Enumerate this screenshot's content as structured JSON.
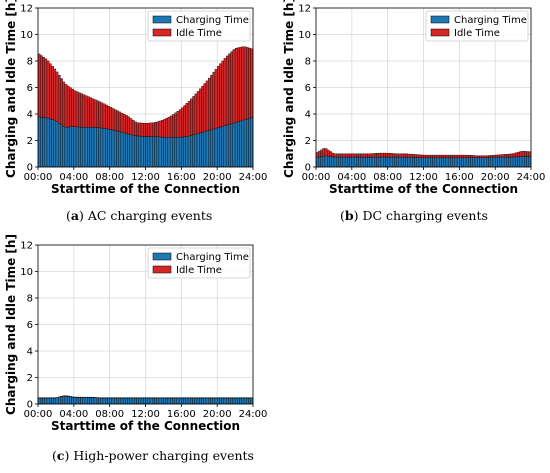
{
  "colors": {
    "charging": "#1f77b4",
    "idle": "#d62728",
    "edge": "#000000",
    "grid": "#d9d9d9"
  },
  "chart_data": [
    {
      "panel": "a",
      "type": "bar",
      "stacked": true,
      "xlabel": "Starttime of the Connection",
      "ylabel": "Charging and Idle Time [h]",
      "ylim": [
        0,
        12
      ],
      "yticks": [
        "0",
        "2",
        "4",
        "6",
        "8",
        "10",
        "12"
      ],
      "xticks": [
        "00:00",
        "04:00",
        "08:00",
        "12:00",
        "16:00",
        "20:00",
        "24:00"
      ],
      "grid": true,
      "legend": "top-right",
      "x_anchor_hours": [
        0,
        1,
        2,
        3,
        4,
        5,
        6,
        7,
        8,
        9,
        10,
        11,
        12,
        13,
        14,
        15,
        16,
        17,
        18,
        19,
        20,
        21,
        22,
        23,
        24
      ],
      "series": [
        {
          "name": "Charging Time",
          "values": [
            3.8,
            3.7,
            3.5,
            3.0,
            3.05,
            3.0,
            3.0,
            2.95,
            2.85,
            2.7,
            2.5,
            2.35,
            2.3,
            2.3,
            2.25,
            2.25,
            2.25,
            2.35,
            2.55,
            2.75,
            2.95,
            3.15,
            3.35,
            3.55,
            3.75
          ]
        },
        {
          "name": "Idle Time",
          "values": [
            4.8,
            4.4,
            3.8,
            3.3,
            2.75,
            2.5,
            2.2,
            1.95,
            1.7,
            1.5,
            1.35,
            1.0,
            1.0,
            1.05,
            1.3,
            1.65,
            2.15,
            2.7,
            3.25,
            3.85,
            4.55,
            5.15,
            5.6,
            5.55,
            5.15
          ]
        }
      ]
    },
    {
      "panel": "b",
      "type": "bar",
      "stacked": true,
      "xlabel": "Starttime of the Connection",
      "ylabel": "Charging and Idle Time [h]",
      "ylim": [
        0,
        12
      ],
      "yticks": [
        "0",
        "2",
        "4",
        "6",
        "8",
        "10",
        "12"
      ],
      "xticks": [
        "00:00",
        "04:00",
        "08:00",
        "12:00",
        "16:00",
        "20:00",
        "24:00"
      ],
      "grid": true,
      "legend": "top-right",
      "x_anchor_hours": [
        0,
        1,
        2,
        3,
        4,
        5,
        6,
        7,
        8,
        9,
        10,
        11,
        12,
        13,
        14,
        15,
        16,
        17,
        18,
        19,
        20,
        21,
        22,
        23,
        24
      ],
      "series": [
        {
          "name": "Charging Time",
          "values": [
            0.7,
            0.85,
            0.75,
            0.75,
            0.75,
            0.75,
            0.75,
            0.75,
            0.75,
            0.75,
            0.75,
            0.7,
            0.7,
            0.7,
            0.7,
            0.7,
            0.7,
            0.7,
            0.7,
            0.7,
            0.75,
            0.75,
            0.75,
            0.8,
            0.8
          ]
        },
        {
          "name": "Idle Time",
          "values": [
            0.35,
            0.6,
            0.25,
            0.25,
            0.25,
            0.25,
            0.25,
            0.3,
            0.3,
            0.25,
            0.25,
            0.25,
            0.2,
            0.2,
            0.2,
            0.2,
            0.2,
            0.2,
            0.15,
            0.15,
            0.15,
            0.2,
            0.25,
            0.4,
            0.35
          ]
        }
      ]
    },
    {
      "panel": "c",
      "type": "bar",
      "stacked": true,
      "xlabel": "Starttime of the Connection",
      "ylabel": "Charging and Idle Time [h]",
      "ylim": [
        0,
        12
      ],
      "yticks": [
        "0",
        "2",
        "4",
        "6",
        "8",
        "10",
        "12"
      ],
      "xticks": [
        "00:00",
        "04:00",
        "08:00",
        "12:00",
        "16:00",
        "20:00",
        "24:00"
      ],
      "grid": true,
      "legend": "top-right",
      "x_anchor_hours": [
        0,
        1,
        2,
        3,
        4,
        5,
        6,
        7,
        8,
        9,
        10,
        11,
        12,
        13,
        14,
        15,
        16,
        17,
        18,
        19,
        20,
        21,
        22,
        23,
        24
      ],
      "series": [
        {
          "name": "Charging Time",
          "values": [
            0.45,
            0.45,
            0.45,
            0.6,
            0.5,
            0.5,
            0.5,
            0.45,
            0.45,
            0.45,
            0.45,
            0.45,
            0.45,
            0.45,
            0.45,
            0.45,
            0.45,
            0.45,
            0.45,
            0.45,
            0.45,
            0.45,
            0.45,
            0.45,
            0.45
          ]
        },
        {
          "name": "Idle Time",
          "values": [
            0.02,
            0.02,
            0.02,
            0.05,
            0.03,
            0.02,
            0.02,
            0.02,
            0.02,
            0.02,
            0.02,
            0.02,
            0.02,
            0.02,
            0.02,
            0.02,
            0.02,
            0.02,
            0.02,
            0.02,
            0.02,
            0.02,
            0.02,
            0.02,
            0.02
          ]
        }
      ]
    }
  ],
  "captions": [
    {
      "label": "a",
      "text": "AC charging events"
    },
    {
      "label": "b",
      "text": "DC charging events"
    },
    {
      "label": "c",
      "text": "High-power charging events"
    }
  ]
}
